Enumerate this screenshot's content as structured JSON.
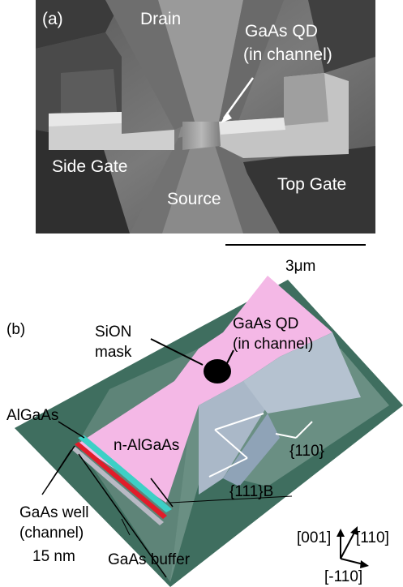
{
  "panel_a": {
    "tag": "(a)",
    "drain": "Drain",
    "qd_line1": "GaAs QD",
    "qd_line2": "(in channel)",
    "side_gate": "Side Gate",
    "source": "Source",
    "top_gate": "Top Gate",
    "scale_bar": "3μm"
  },
  "panel_b": {
    "tag": "(b)",
    "sion_line1": "SiON",
    "sion_line2": "mask",
    "qd_line1": "GaAs QD",
    "qd_line2": "(in channel)",
    "algaas": "AlGaAs",
    "n_algaas": "n-AlGaAs",
    "facet_110": "{110}",
    "facet_111b": "{111}B",
    "well_line1": "GaAs well",
    "well_line2": "(channel)",
    "well_line3": "15 nm",
    "buffer": "GaAs buffer",
    "dir_001": "[001]",
    "dir_110": "[110]",
    "dir_m110": "[-110]"
  },
  "colors": {
    "substrate": "#3f6e5f",
    "ridge_side": "#5e8478",
    "mask": "#f4b8e6",
    "facet": "#aab8c8",
    "algaas_layer": "#3dd0c6",
    "well_layer": "#e11d2a",
    "buffer_layer": "#b9b9c4"
  }
}
